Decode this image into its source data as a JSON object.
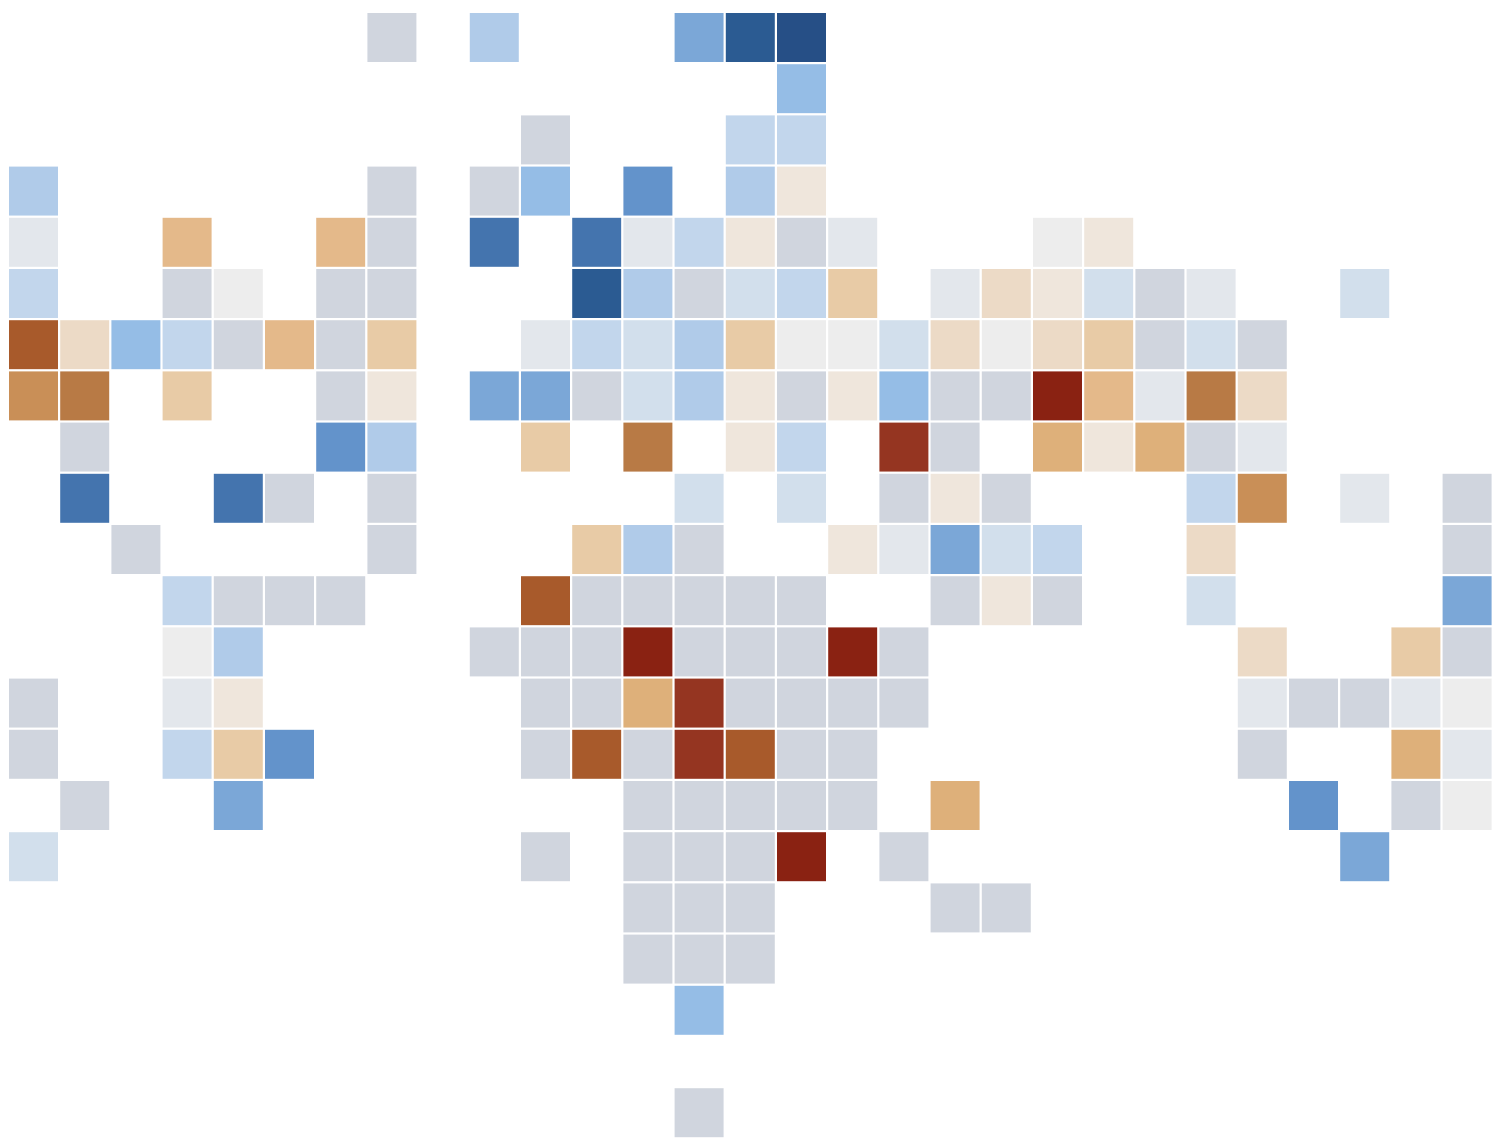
{
  "palette": {
    "g": "#d0d5de",
    "b1": "#e3e7ec",
    "b2": "#d2dfec",
    "b3": "#c2d6ec",
    "b4": "#b0cbe9",
    "b5": "#95bde6",
    "b6": "#7ba7d7",
    "b7": "#6393cb",
    "b8": "#4474ae",
    "b9": "#2b5b92",
    "b10": "#264f86",
    "e0": "#ededed",
    "e1": "#efe6dc",
    "e2": "#ecdac6",
    "e3": "#e8cba6",
    "e4": "#e4b98a",
    "e5": "#deb07a",
    "e6": "#c98f57",
    "e7": "#b87a45",
    "e8": "#a85a2b",
    "e9": "#953521",
    "e10": "#8a2212"
  },
  "tile_grid": {
    "rows": 22,
    "cols": 29,
    "cells": [
      [
        0,
        7,
        "g"
      ],
      [
        0,
        9,
        "b4"
      ],
      [
        0,
        13,
        "b6"
      ],
      [
        0,
        14,
        "b9"
      ],
      [
        0,
        15,
        "b10"
      ],
      [
        1,
        15,
        "b5"
      ],
      [
        2,
        10,
        "g"
      ],
      [
        2,
        14,
        "b3"
      ],
      [
        2,
        15,
        "b3"
      ],
      [
        3,
        0,
        "b4"
      ],
      [
        3,
        7,
        "g"
      ],
      [
        3,
        9,
        "g"
      ],
      [
        3,
        10,
        "b5"
      ],
      [
        3,
        12,
        "b7"
      ],
      [
        3,
        14,
        "b4"
      ],
      [
        3,
        15,
        "e1"
      ],
      [
        4,
        0,
        "b1"
      ],
      [
        4,
        3,
        "e4"
      ],
      [
        4,
        6,
        "e4"
      ],
      [
        4,
        7,
        "g"
      ],
      [
        4,
        9,
        "b8"
      ],
      [
        4,
        11,
        "b8"
      ],
      [
        4,
        12,
        "b1"
      ],
      [
        4,
        13,
        "b3"
      ],
      [
        4,
        14,
        "e1"
      ],
      [
        4,
        15,
        "g"
      ],
      [
        4,
        16,
        "b1"
      ],
      [
        4,
        20,
        "e0"
      ],
      [
        4,
        21,
        "e1"
      ],
      [
        5,
        0,
        "b3"
      ],
      [
        5,
        3,
        "g"
      ],
      [
        5,
        4,
        "e0"
      ],
      [
        5,
        6,
        "g"
      ],
      [
        5,
        7,
        "g"
      ],
      [
        5,
        11,
        "b9"
      ],
      [
        5,
        12,
        "b4"
      ],
      [
        5,
        13,
        "g"
      ],
      [
        5,
        14,
        "b2"
      ],
      [
        5,
        15,
        "b3"
      ],
      [
        5,
        16,
        "e3"
      ],
      [
        5,
        18,
        "b1"
      ],
      [
        5,
        19,
        "e2"
      ],
      [
        5,
        20,
        "e1"
      ],
      [
        5,
        21,
        "b2"
      ],
      [
        5,
        22,
        "g"
      ],
      [
        5,
        23,
        "b1"
      ],
      [
        5,
        26,
        "b2"
      ],
      [
        6,
        0,
        "e8"
      ],
      [
        6,
        1,
        "e2"
      ],
      [
        6,
        2,
        "b5"
      ],
      [
        6,
        3,
        "b3"
      ],
      [
        6,
        4,
        "g"
      ],
      [
        6,
        5,
        "e4"
      ],
      [
        6,
        6,
        "g"
      ],
      [
        6,
        7,
        "e3"
      ],
      [
        6,
        10,
        "b1"
      ],
      [
        6,
        11,
        "b3"
      ],
      [
        6,
        12,
        "b2"
      ],
      [
        6,
        13,
        "b4"
      ],
      [
        6,
        14,
        "e3"
      ],
      [
        6,
        15,
        "e0"
      ],
      [
        6,
        16,
        "e0"
      ],
      [
        6,
        17,
        "b2"
      ],
      [
        6,
        18,
        "e2"
      ],
      [
        6,
        19,
        "e0"
      ],
      [
        6,
        20,
        "e2"
      ],
      [
        6,
        21,
        "e3"
      ],
      [
        6,
        22,
        "g"
      ],
      [
        6,
        23,
        "b2"
      ],
      [
        6,
        24,
        "g"
      ],
      [
        7,
        0,
        "e6"
      ],
      [
        7,
        1,
        "e7"
      ],
      [
        7,
        3,
        "e3"
      ],
      [
        7,
        6,
        "g"
      ],
      [
        7,
        7,
        "e1"
      ],
      [
        7,
        9,
        "b6"
      ],
      [
        7,
        10,
        "b6"
      ],
      [
        7,
        11,
        "g"
      ],
      [
        7,
        12,
        "b2"
      ],
      [
        7,
        13,
        "b4"
      ],
      [
        7,
        14,
        "e1"
      ],
      [
        7,
        15,
        "g"
      ],
      [
        7,
        16,
        "e1"
      ],
      [
        7,
        17,
        "b5"
      ],
      [
        7,
        18,
        "g"
      ],
      [
        7,
        19,
        "g"
      ],
      [
        7,
        20,
        "e10"
      ],
      [
        7,
        21,
        "e4"
      ],
      [
        7,
        22,
        "b1"
      ],
      [
        7,
        23,
        "e7"
      ],
      [
        7,
        24,
        "e2"
      ],
      [
        8,
        1,
        "g"
      ],
      [
        8,
        6,
        "b7"
      ],
      [
        8,
        7,
        "b4"
      ],
      [
        8,
        10,
        "e3"
      ],
      [
        8,
        12,
        "e7"
      ],
      [
        8,
        14,
        "e1"
      ],
      [
        8,
        15,
        "b3"
      ],
      [
        8,
        17,
        "e9"
      ],
      [
        8,
        18,
        "g"
      ],
      [
        8,
        20,
        "e5"
      ],
      [
        8,
        21,
        "e1"
      ],
      [
        8,
        22,
        "e5"
      ],
      [
        8,
        23,
        "g"
      ],
      [
        8,
        24,
        "b1"
      ],
      [
        9,
        1,
        "b8"
      ],
      [
        9,
        4,
        "b8"
      ],
      [
        9,
        5,
        "g"
      ],
      [
        9,
        7,
        "g"
      ],
      [
        9,
        13,
        "b2"
      ],
      [
        9,
        15,
        "b2"
      ],
      [
        9,
        17,
        "g"
      ],
      [
        9,
        18,
        "e1"
      ],
      [
        9,
        19,
        "g"
      ],
      [
        9,
        23,
        "b3"
      ],
      [
        9,
        24,
        "e6"
      ],
      [
        9,
        26,
        "b1"
      ],
      [
        9,
        28,
        "g"
      ],
      [
        10,
        2,
        "g"
      ],
      [
        10,
        7,
        "g"
      ],
      [
        10,
        11,
        "e3"
      ],
      [
        10,
        12,
        "b4"
      ],
      [
        10,
        13,
        "g"
      ],
      [
        10,
        16,
        "e1"
      ],
      [
        10,
        17,
        "b1"
      ],
      [
        10,
        18,
        "b6"
      ],
      [
        10,
        19,
        "b2"
      ],
      [
        10,
        20,
        "b3"
      ],
      [
        10,
        23,
        "e2"
      ],
      [
        10,
        28,
        "g"
      ],
      [
        11,
        3,
        "b3"
      ],
      [
        11,
        4,
        "g"
      ],
      [
        11,
        5,
        "g"
      ],
      [
        11,
        6,
        "g"
      ],
      [
        11,
        10,
        "e8"
      ],
      [
        11,
        11,
        "g"
      ],
      [
        11,
        12,
        "g"
      ],
      [
        11,
        13,
        "g"
      ],
      [
        11,
        14,
        "g"
      ],
      [
        11,
        15,
        "g"
      ],
      [
        11,
        18,
        "g"
      ],
      [
        11,
        19,
        "e1"
      ],
      [
        11,
        20,
        "g"
      ],
      [
        11,
        23,
        "b2"
      ],
      [
        11,
        28,
        "b6"
      ],
      [
        12,
        3,
        "e0"
      ],
      [
        12,
        4,
        "b4"
      ],
      [
        12,
        9,
        "g"
      ],
      [
        12,
        10,
        "g"
      ],
      [
        12,
        11,
        "g"
      ],
      [
        12,
        12,
        "e10"
      ],
      [
        12,
        13,
        "g"
      ],
      [
        12,
        14,
        "g"
      ],
      [
        12,
        15,
        "g"
      ],
      [
        12,
        16,
        "e10"
      ],
      [
        12,
        17,
        "g"
      ],
      [
        12,
        24,
        "e2"
      ],
      [
        12,
        27,
        "e3"
      ],
      [
        12,
        28,
        "g"
      ],
      [
        13,
        0,
        "g"
      ],
      [
        13,
        3,
        "b1"
      ],
      [
        13,
        4,
        "e1"
      ],
      [
        13,
        10,
        "g"
      ],
      [
        13,
        11,
        "g"
      ],
      [
        13,
        12,
        "e5"
      ],
      [
        13,
        13,
        "e9"
      ],
      [
        13,
        14,
        "g"
      ],
      [
        13,
        15,
        "g"
      ],
      [
        13,
        16,
        "g"
      ],
      [
        13,
        17,
        "g"
      ],
      [
        13,
        24,
        "b1"
      ],
      [
        13,
        25,
        "g"
      ],
      [
        13,
        26,
        "g"
      ],
      [
        13,
        27,
        "b1"
      ],
      [
        13,
        28,
        "e0"
      ],
      [
        14,
        0,
        "g"
      ],
      [
        14,
        3,
        "b3"
      ],
      [
        14,
        4,
        "e3"
      ],
      [
        14,
        5,
        "b7"
      ],
      [
        14,
        10,
        "g"
      ],
      [
        14,
        11,
        "e8"
      ],
      [
        14,
        12,
        "g"
      ],
      [
        14,
        13,
        "e9"
      ],
      [
        14,
        14,
        "e8"
      ],
      [
        14,
        15,
        "g"
      ],
      [
        14,
        16,
        "g"
      ],
      [
        14,
        24,
        "g"
      ],
      [
        14,
        27,
        "e5"
      ],
      [
        14,
        28,
        "b1"
      ],
      [
        15,
        1,
        "g"
      ],
      [
        15,
        4,
        "b6"
      ],
      [
        15,
        12,
        "g"
      ],
      [
        15,
        13,
        "g"
      ],
      [
        15,
        14,
        "g"
      ],
      [
        15,
        15,
        "g"
      ],
      [
        15,
        16,
        "g"
      ],
      [
        15,
        18,
        "e5"
      ],
      [
        15,
        25,
        "b7"
      ],
      [
        15,
        27,
        "g"
      ],
      [
        15,
        28,
        "e0"
      ],
      [
        16,
        0,
        "b2"
      ],
      [
        16,
        10,
        "g"
      ],
      [
        16,
        12,
        "g"
      ],
      [
        16,
        13,
        "g"
      ],
      [
        16,
        14,
        "g"
      ],
      [
        16,
        15,
        "e10"
      ],
      [
        16,
        17,
        "g"
      ],
      [
        16,
        26,
        "b6"
      ],
      [
        17,
        12,
        "g"
      ],
      [
        17,
        13,
        "g"
      ],
      [
        17,
        14,
        "g"
      ],
      [
        17,
        18,
        "g"
      ],
      [
        17,
        19,
        "g"
      ],
      [
        18,
        12,
        "g"
      ],
      [
        18,
        13,
        "g"
      ],
      [
        18,
        14,
        "g"
      ],
      [
        19,
        13,
        "b5"
      ],
      [
        21,
        13,
        "g"
      ]
    ]
  }
}
